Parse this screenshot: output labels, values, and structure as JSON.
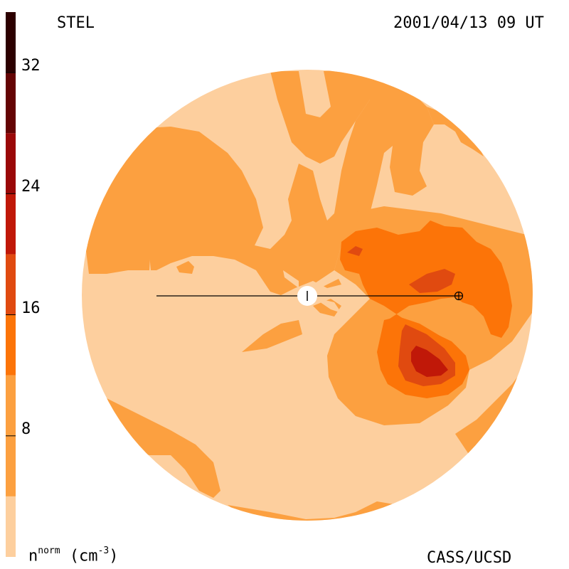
{
  "header": {
    "instrument": "STEL",
    "datetime": "2001/04/13 09 UT"
  },
  "footer": {
    "credit": "CASS/UCSD",
    "unit_base": "n",
    "unit_superscript": "norm",
    "unit_paren": "(cm",
    "unit_exponent": "-3",
    "unit_close": ")"
  },
  "colorbar": {
    "tick_labels": [
      "8",
      "16",
      "24",
      "32"
    ],
    "tick_values": [
      8,
      16,
      24,
      32
    ],
    "range": [
      0,
      36
    ],
    "levels": [
      {
        "min": 0,
        "max": 4,
        "color": "#fdcf9e"
      },
      {
        "min": 4,
        "max": 12,
        "color": "#fca040"
      },
      {
        "min": 12,
        "max": 16,
        "color": "#fc7408"
      },
      {
        "min": 16,
        "max": 20,
        "color": "#e04a10"
      },
      {
        "min": 20,
        "max": 24,
        "color": "#c01808"
      },
      {
        "min": 24,
        "max": 28,
        "color": "#9a0808"
      },
      {
        "min": 28,
        "max": 32,
        "color": "#640404"
      },
      {
        "min": 32,
        "max": 36,
        "color": "#2c0000"
      }
    ]
  },
  "map": {
    "background_color": "#fdcf9e",
    "line_color": "#000000",
    "sun_color": "#ffffff"
  }
}
